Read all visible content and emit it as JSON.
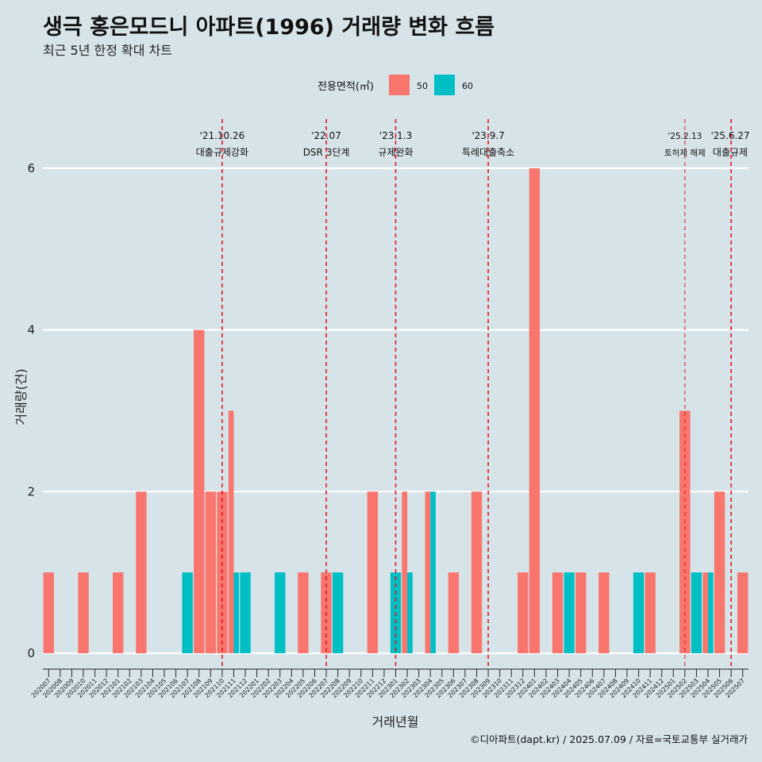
{
  "chart_data": {
    "type": "bar",
    "title": "생극 홍은모드니 아파트(1996) 거래량 변화 흐름",
    "subtitle": "최근 5년 한정 확대 차트",
    "xlabel": "거래년월",
    "ylabel": "거래량(건)",
    "ylim": [
      0,
      6
    ],
    "yticks": [
      0,
      2,
      4,
      6
    ],
    "grid": true,
    "legend": {
      "title": "전용면적(㎡)",
      "placement": "top",
      "entries": [
        {
          "name": "50",
          "color": "#F8766D"
        },
        {
          "name": "60",
          "color": "#00BFC4"
        }
      ]
    },
    "categories": [
      "202007",
      "202008",
      "202009",
      "202010",
      "202011",
      "202012",
      "202101",
      "202102",
      "202103",
      "202104",
      "202105",
      "202106",
      "202107",
      "202108",
      "202109",
      "202110",
      "202111",
      "202112",
      "202201",
      "202202",
      "202203",
      "202204",
      "202205",
      "202206",
      "202207",
      "202208",
      "202209",
      "202210",
      "202211",
      "202212",
      "202301",
      "202302",
      "202303",
      "202304",
      "202305",
      "202306",
      "202307",
      "202308",
      "202309",
      "202310",
      "202311",
      "202312",
      "202401",
      "202402",
      "202403",
      "202404",
      "202405",
      "202406",
      "202407",
      "202408",
      "202409",
      "202410",
      "202411",
      "202412",
      "202501",
      "202502",
      "202503",
      "202504",
      "202505",
      "202506",
      "202507"
    ],
    "series": [
      {
        "name": "50",
        "color": "#F8766D",
        "values": [
          1,
          0,
          0,
          1,
          0,
          0,
          1,
          0,
          2,
          0,
          0,
          0,
          0,
          4,
          2,
          2,
          3,
          0,
          0,
          0,
          0,
          0,
          1,
          0,
          1,
          0,
          0,
          0,
          2,
          0,
          0,
          2,
          0,
          2,
          0,
          1,
          0,
          2,
          0,
          0,
          0,
          1,
          6,
          0,
          1,
          0,
          1,
          0,
          1,
          0,
          0,
          0,
          1,
          0,
          0,
          3,
          0,
          1,
          2,
          0,
          1
        ]
      },
      {
        "name": "60",
        "color": "#00BFC4",
        "values": [
          0,
          0,
          0,
          0,
          0,
          0,
          0,
          0,
          0,
          0,
          0,
          0,
          1,
          0,
          0,
          0,
          1,
          1,
          0,
          0,
          1,
          0,
          0,
          0,
          0,
          1,
          0,
          0,
          0,
          0,
          1,
          1,
          0,
          2,
          0,
          0,
          0,
          0,
          0,
          0,
          0,
          0,
          0,
          0,
          0,
          1,
          0,
          0,
          0,
          0,
          0,
          1,
          0,
          0,
          0,
          0,
          1,
          1,
          0,
          0,
          0
        ]
      }
    ],
    "events": [
      {
        "date": "'21.10.26",
        "label": "대출규제강화",
        "month": "202110"
      },
      {
        "date": "'22.07",
        "label": "DSR 3단계",
        "month": "202207"
      },
      {
        "date": "'23.1.3",
        "label": "규제완화",
        "month": "202301"
      },
      {
        "date": "'23.9.7",
        "label": "특례대출축소",
        "month": "202309"
      },
      {
        "date": "'25.2.13",
        "label": "토허제 해제",
        "month": "202502"
      },
      {
        "date": "'25.6.27",
        "label": "대출규제",
        "month": "202506"
      }
    ],
    "caption": "©디아파트(dapt.kr) / 2025.07.09 / 자료=국토교통부 실거래가"
  }
}
